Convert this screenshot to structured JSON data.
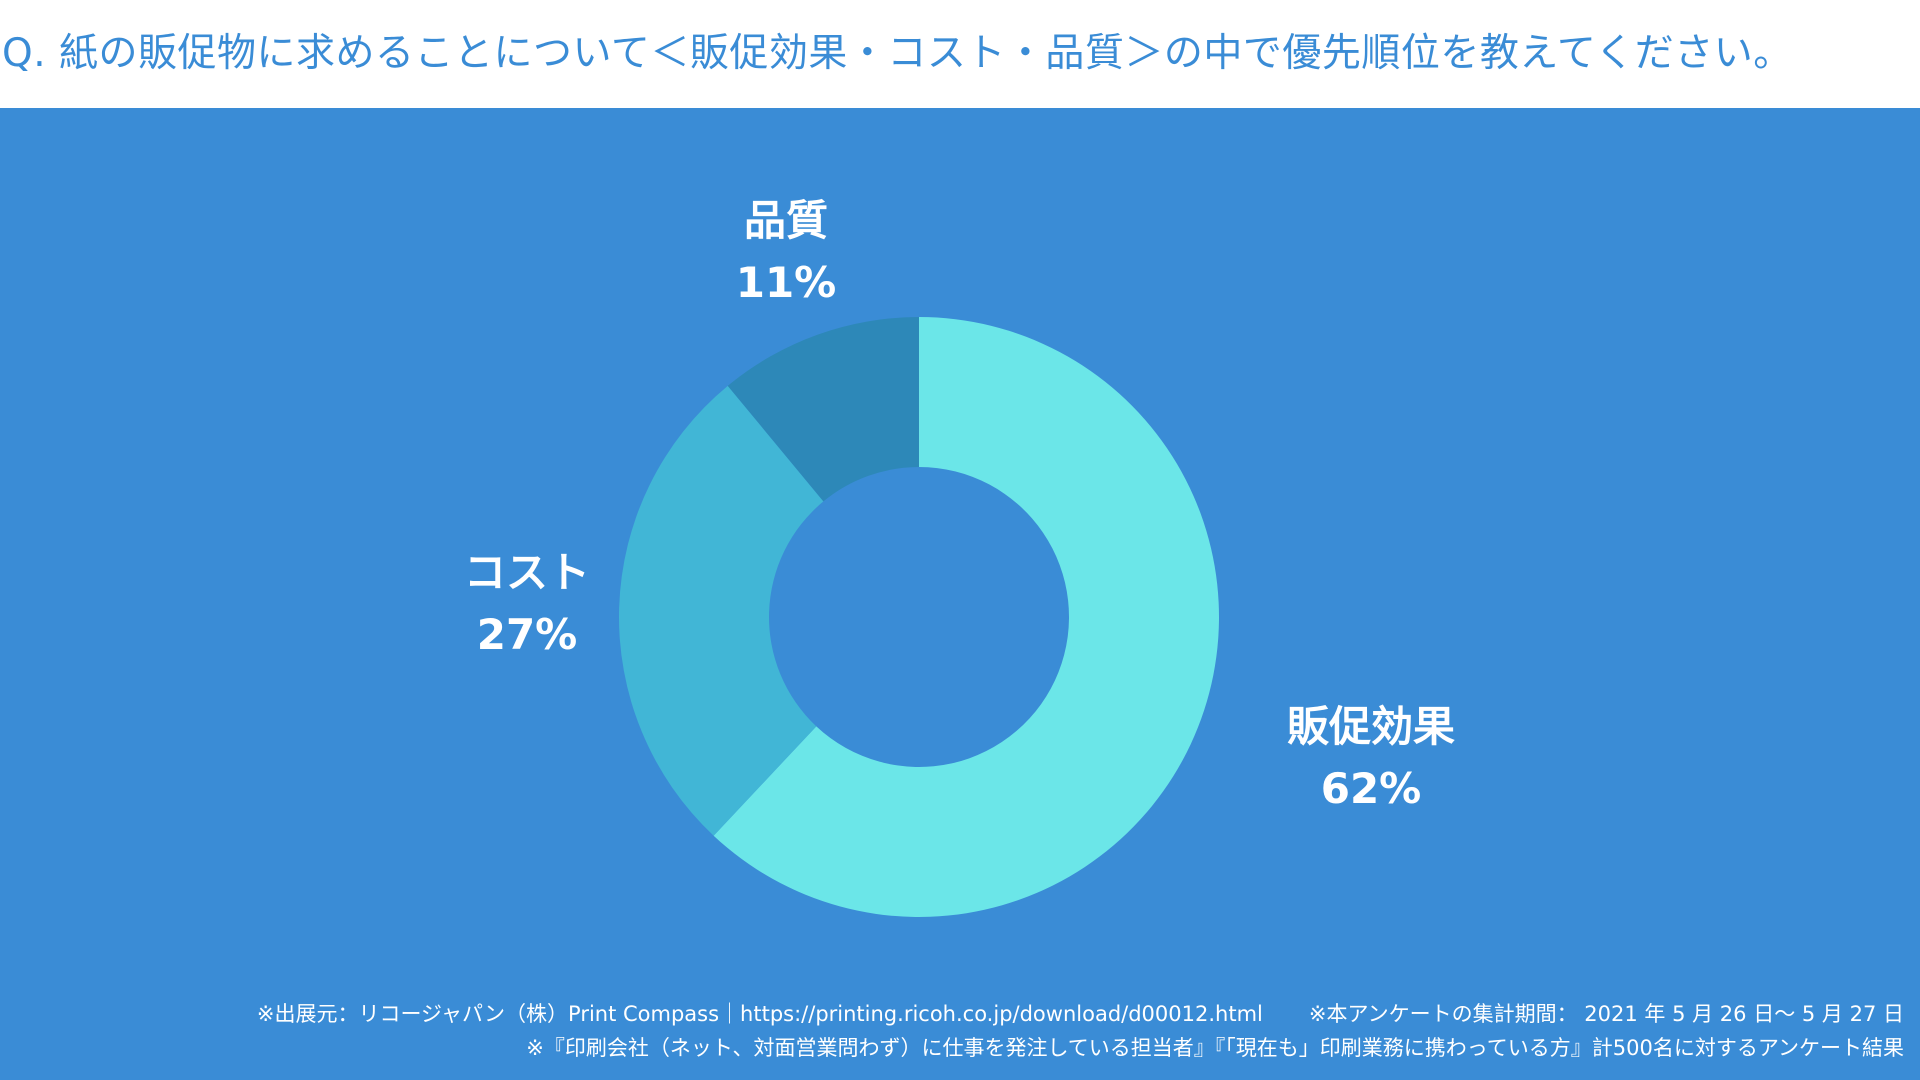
{
  "title": "Q. 紙の販促物に求めることについて＜販促効果・コスト・品質＞の中で優先順位を教えてください。",
  "colors": {
    "background": "#3a8cd6",
    "title": "#3a8cd6",
    "slice_1": "#6be6e8",
    "slice_2": "#41b6d6",
    "slice_3": "#2d88b8"
  },
  "chart_data": {
    "type": "pie",
    "donut": true,
    "slices": [
      {
        "label": "販促効果",
        "value": 62,
        "value_label": "62%"
      },
      {
        "label": "コスト",
        "value": 27,
        "value_label": "27%"
      },
      {
        "label": "品質",
        "value": 11,
        "value_label": "11%"
      }
    ]
  },
  "footer": {
    "source": "※出展元：リコージャパン（株）Print Compass｜https://printing.ricoh.co.jp/download/d00012.html",
    "period": "※本アンケートの集計期間： 2021 年 5 月 26 日～ 5 月 27 日",
    "respondents": "※『印刷会社（ネット、対面営業問わず）に仕事を発注している担当者』『「現在も」印刷業務に携わっている方』計500名に対するアンケート結果"
  }
}
